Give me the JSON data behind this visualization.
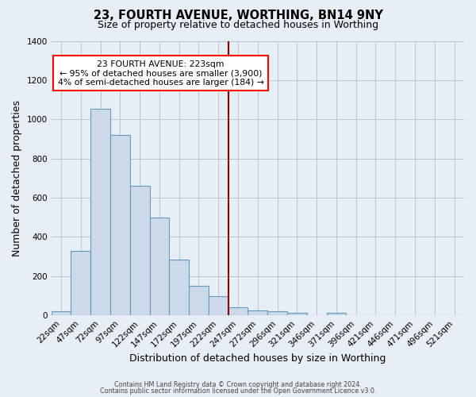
{
  "title": "23, FOURTH AVENUE, WORTHING, BN14 9NY",
  "subtitle": "Size of property relative to detached houses in Worthing",
  "xlabel": "Distribution of detached houses by size in Worthing",
  "ylabel": "Number of detached properties",
  "categories": [
    "22sqm",
    "47sqm",
    "72sqm",
    "97sqm",
    "122sqm",
    "147sqm",
    "172sqm",
    "197sqm",
    "222sqm",
    "247sqm",
    "272sqm",
    "296sqm",
    "321sqm",
    "346sqm",
    "371sqm",
    "396sqm",
    "421sqm",
    "446sqm",
    "471sqm",
    "496sqm",
    "521sqm"
  ],
  "values": [
    20,
    330,
    1055,
    920,
    660,
    500,
    285,
    150,
    100,
    40,
    25,
    22,
    15,
    0,
    12,
    0,
    0,
    0,
    0,
    0,
    0
  ],
  "bar_color": "#ccd9e8",
  "bar_edge_color": "#6699bb",
  "red_line_x": 8.5,
  "annotation_title": "23 FOURTH AVENUE: 223sqm",
  "annotation_line1": "← 95% of detached houses are smaller (3,900)",
  "annotation_line2": "4% of semi-detached houses are larger (184) →",
  "ylim": [
    0,
    1400
  ],
  "yticks": [
    0,
    200,
    400,
    600,
    800,
    1000,
    1200,
    1400
  ],
  "bg_color": "#e8eef5",
  "footer1": "Contains HM Land Registry data © Crown copyright and database right 2024.",
  "footer2": "Contains public sector information licensed under the Open Government Licence v3.0."
}
